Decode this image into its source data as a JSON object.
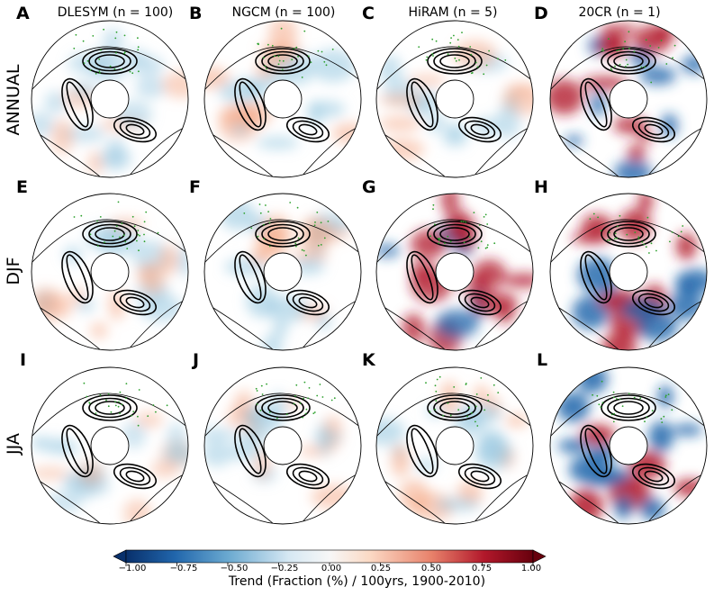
{
  "chart_data": {
    "type": "heatmap",
    "projection": "north-polar-stereographic",
    "columns": [
      {
        "letter_row1": "A",
        "title": "DLESYM (n = 100)"
      },
      {
        "letter_row1": "B",
        "title": "NGCM (n = 100)"
      },
      {
        "letter_row1": "C",
        "title": "HiRAM (n = 5)"
      },
      {
        "letter_row1": "D",
        "title": "20CR (n = 1)"
      }
    ],
    "rows": [
      {
        "label": "ANNUAL",
        "letters": [
          "A",
          "B",
          "C",
          "D"
        ]
      },
      {
        "label": "DJF",
        "letters": [
          "E",
          "F",
          "G",
          "H"
        ]
      },
      {
        "label": "JJA",
        "letters": [
          "I",
          "J",
          "K",
          "L"
        ]
      }
    ],
    "panel_intensity": [
      [
        0.35,
        0.45,
        0.4,
        0.9
      ],
      [
        0.4,
        0.5,
        0.85,
        0.95
      ],
      [
        0.3,
        0.4,
        0.5,
        1.0
      ]
    ],
    "colorbar": {
      "label": "Trend (Fraction (%) / 100yrs, 1900-2010)",
      "ticks": [
        "−1.00",
        "−0.75",
        "−0.50",
        "−0.25",
        "0.00",
        "0.25",
        "0.50",
        "0.75",
        "1.00"
      ],
      "range": [
        -1.0,
        1.0
      ],
      "cmap_low": "#08306b",
      "cmap_mid": "#f7f7f7",
      "cmap_high": "#67000d"
    },
    "stippling_color": "#2ca02c",
    "contour_color": "#000000"
  }
}
